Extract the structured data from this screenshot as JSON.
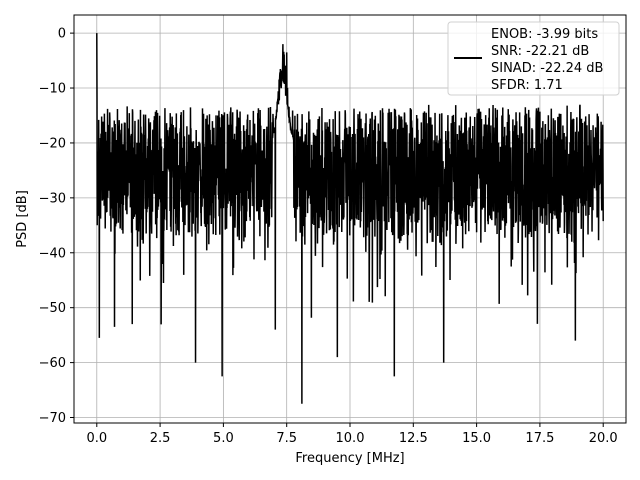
{
  "chart_data": {
    "type": "line",
    "xlabel": "Frequency [MHz]",
    "ylabel": "PSD [dB]",
    "xlim": [
      -0.9,
      20.9
    ],
    "ylim": [
      -71,
      3.3
    ],
    "xticks": [
      0.0,
      2.5,
      5.0,
      7.5,
      10.0,
      12.5,
      15.0,
      17.5,
      20.0
    ],
    "xtick_labels": [
      "0.0",
      "2.5",
      "5.0",
      "7.5",
      "10.0",
      "12.5",
      "15.0",
      "17.5",
      "20.0"
    ],
    "yticks": [
      0,
      -10,
      -20,
      -30,
      -40,
      -50,
      -60,
      -70
    ],
    "ytick_labels": [
      "0",
      "−10",
      "−20",
      "−30",
      "−40",
      "−50",
      "−60",
      "−70"
    ],
    "grid": true,
    "legend": {
      "position": "top-right",
      "entries": [
        "ENOB: -3.99 bits",
        "SNR: -22.21 dB",
        "SINAD: -22.24 dB",
        "SFDR: 1.71"
      ]
    },
    "series": [
      {
        "color": "#000000",
        "description_noise_floor": "dense noise, upper envelope about -15 dB, median about -25 dB, lower excursions to about -45 dB across 0-20 MHz",
        "peaks": [
          {
            "x": 0.0,
            "y": 0.0
          },
          {
            "x": 7.35,
            "y": -2.0
          },
          {
            "x": 7.5,
            "y": -3.5
          }
        ],
        "dips": [
          {
            "x": 0.1,
            "y": -55.5
          },
          {
            "x": 0.7,
            "y": -53.5
          },
          {
            "x": 1.4,
            "y": -53.0
          },
          {
            "x": 3.9,
            "y": -60.0
          },
          {
            "x": 4.95,
            "y": -62.5
          },
          {
            "x": 7.05,
            "y": -54.0
          },
          {
            "x": 8.1,
            "y": -67.5
          },
          {
            "x": 9.5,
            "y": -59.0
          },
          {
            "x": 11.75,
            "y": -62.5
          },
          {
            "x": 13.7,
            "y": -60.0
          },
          {
            "x": 18.9,
            "y": -56.0
          }
        ]
      }
    ]
  }
}
